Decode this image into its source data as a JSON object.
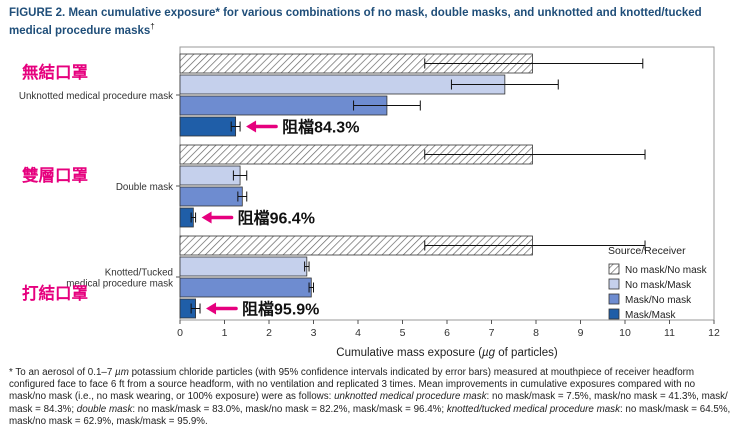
{
  "figure": {
    "label": "FIGURE 2.",
    "title": "Mean cumulative exposure* for various combinations of no mask, double masks, and unknotted and knotted/tucked medical procedure masks",
    "title_dagger": "†"
  },
  "chart_data": {
    "type": "bar",
    "orientation": "horizontal",
    "xlabel_prefix": "Cumulative mass exposure (",
    "xlabel_unit": "µg",
    "xlabel_suffix": " of particles)",
    "xlim": [
      0,
      12
    ],
    "xticks": [
      "0",
      "1",
      "2",
      "3",
      "4",
      "5",
      "6",
      "7",
      "8",
      "9",
      "10",
      "11",
      "12"
    ],
    "groups": [
      {
        "label_lines": [
          "Unknotted medical procedure mask"
        ],
        "annotation_zh": "無結口罩",
        "callout": "阻檔84.3%"
      },
      {
        "label_lines": [
          "Double mask"
        ],
        "annotation_zh": "雙層口罩",
        "callout": "阻檔96.4%"
      },
      {
        "label_lines": [
          "Knotted/Tucked",
          "medical procedure mask"
        ],
        "annotation_zh": "打結口罩",
        "callout": "阻檔95.9%"
      }
    ],
    "series": [
      {
        "name": "No mask/No mask",
        "color": "#ffffff",
        "pattern": "hatch",
        "values": [
          7.92,
          7.92,
          7.92
        ],
        "err_low": [
          5.5,
          5.5,
          5.5
        ],
        "err_high": [
          10.4,
          10.45,
          10.45
        ]
      },
      {
        "name": "No mask/Mask",
        "color": "#c5d0ec",
        "pattern": "solid",
        "values": [
          7.3,
          1.35,
          2.85
        ],
        "err_low": [
          6.1,
          1.2,
          2.8
        ],
        "err_high": [
          8.5,
          1.5,
          2.9
        ]
      },
      {
        "name": "Mask/No mask",
        "color": "#6e8cd0",
        "pattern": "solid",
        "values": [
          4.65,
          1.4,
          2.95
        ],
        "err_low": [
          3.9,
          1.3,
          2.9
        ],
        "err_high": [
          5.4,
          1.5,
          3.0
        ]
      },
      {
        "name": "Mask/Mask",
        "color": "#1f5ea8",
        "pattern": "solid",
        "values": [
          1.25,
          0.3,
          0.35
        ],
        "err_low": [
          1.15,
          0.25,
          0.25
        ],
        "err_high": [
          1.35,
          0.35,
          0.45
        ]
      }
    ],
    "legend_title": "Source/Receiver",
    "legend_position": "right-bottom"
  },
  "footnote": {
    "marker": "*",
    "part1": "To an aerosol of 0.1–7 ",
    "mu": "µm",
    "part2": " potassium chloride particles (with 95% confidence intervals indicated by error bars) measured at mouthpiece of receiver headform configured face to face 6 ft from a source headform, with no ventilation and replicated 3 times. Mean improvements in cumulative exposures compared with no mask/no mask (i.e., no mask wearing, or 100% exposure) were as follows: ",
    "g1_name": "unknotted medical procedure mask",
    "g1_vals": ": no mask/mask = 7.5%, mask/no mask = 41.3%, mask/ mask = 84.3%; ",
    "g2_name": "double mask",
    "g2_vals": ": no mask/mask = 83.0%, mask/no mask = 82.2%, mask/mask = 96.4%; ",
    "g3_name": "knotted/tucked medical procedure mask",
    "g3_vals": ": no mask/mask = 64.5%, mask/no mask = 62.9%, mask/mask = 95.9%."
  },
  "colors": {
    "title_blue": "#1f4e79",
    "annotation_pink": "#e6007e",
    "axis_gray": "#555555"
  }
}
